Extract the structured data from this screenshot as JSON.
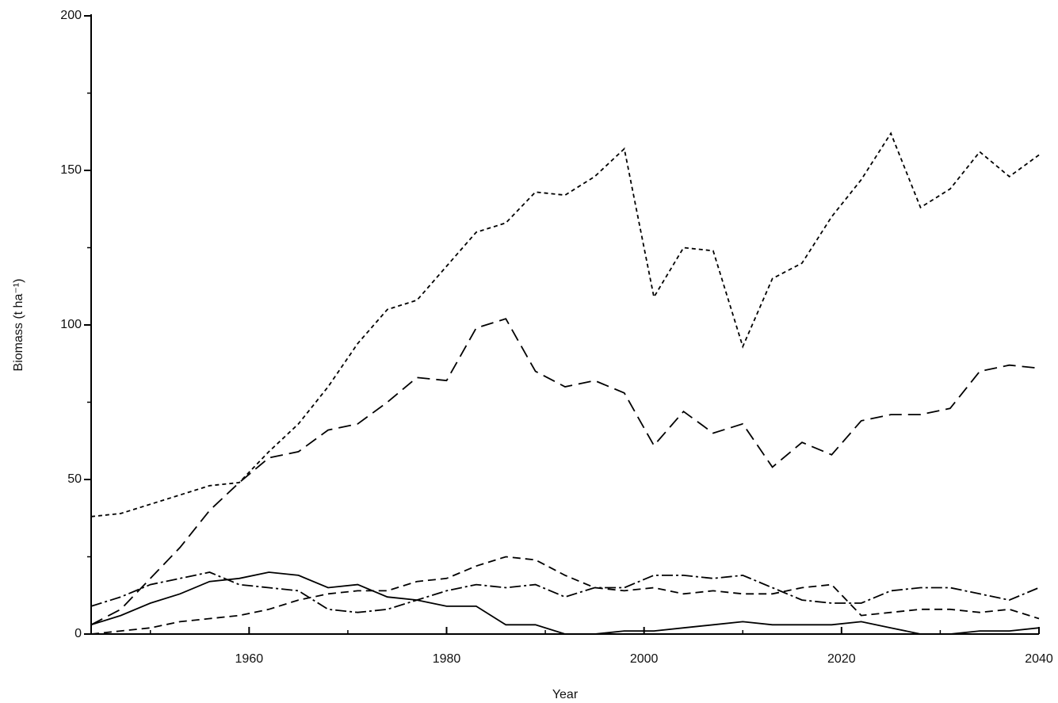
{
  "chart_data": {
    "type": "line",
    "x_label": "Year",
    "y_label": "Biomass (t ha⁻¹)",
    "x": [
      1944,
      1947,
      1950,
      1953,
      1956,
      1959,
      1962,
      1965,
      1968,
      1971,
      1974,
      1977,
      1980,
      1983,
      1986,
      1989,
      1992,
      1995,
      1998,
      2001,
      2004,
      2007,
      2010,
      2013,
      2016,
      2019,
      2022,
      2025,
      2028,
      2031,
      2034,
      2037,
      2040
    ],
    "series": [
      {
        "color": "#000000",
        "dash": "5,4",
        "values": [
          38,
          39,
          42,
          45,
          48,
          49,
          59,
          68,
          80,
          94,
          105,
          108,
          119,
          130,
          133,
          143,
          142,
          148,
          157,
          109,
          125,
          124,
          93,
          115,
          120,
          135,
          147,
          162,
          138,
          144,
          156,
          148,
          155
        ]
      },
      {
        "color": "#000000",
        "dash": "16,8",
        "values": [
          3,
          8,
          18,
          28,
          40,
          49,
          57,
          59,
          66,
          68,
          75,
          83,
          82,
          99,
          102,
          85,
          80,
          82,
          78,
          61,
          72,
          65,
          68,
          54,
          62,
          58,
          69,
          71,
          71,
          73,
          85,
          87,
          86
        ]
      },
      {
        "color": "#000000",
        "dash": "14,4,3,4",
        "values": [
          9,
          12,
          16,
          18,
          20,
          16,
          15,
          14,
          8,
          7,
          8,
          11,
          14,
          16,
          15,
          16,
          12,
          15,
          15,
          19,
          19,
          18,
          19,
          15,
          11,
          10,
          10,
          14,
          15,
          15,
          13,
          11,
          15
        ]
      },
      {
        "color": "#000000",
        "dash": "10,6",
        "values": [
          0,
          1,
          2,
          4,
          5,
          6,
          8,
          11,
          13,
          14,
          14,
          17,
          18,
          22,
          25,
          24,
          19,
          15,
          14,
          15,
          13,
          14,
          13,
          13,
          15,
          16,
          6,
          7,
          8,
          8,
          7,
          8,
          5
        ]
      },
      {
        "color": "#000000",
        "dash": "none",
        "values": [
          3,
          6,
          10,
          13,
          17,
          18,
          20,
          19,
          15,
          16,
          12,
          11,
          9,
          9,
          3,
          3,
          0,
          0,
          1,
          1,
          2,
          3,
          4,
          3,
          3,
          3,
          4,
          2,
          0,
          0,
          1,
          1,
          2
        ]
      }
    ],
    "xlim": [
      1944,
      2040
    ],
    "xticks": [
      1960,
      1980,
      2000,
      2020,
      2040
    ],
    "xminor": [
      1950,
      1970,
      1990,
      2010,
      2030
    ],
    "ylim": [
      0,
      200
    ],
    "yticks": [
      0,
      50,
      100,
      150,
      200
    ],
    "yminor": [
      25,
      75,
      125,
      175
    ],
    "grid": false
  }
}
